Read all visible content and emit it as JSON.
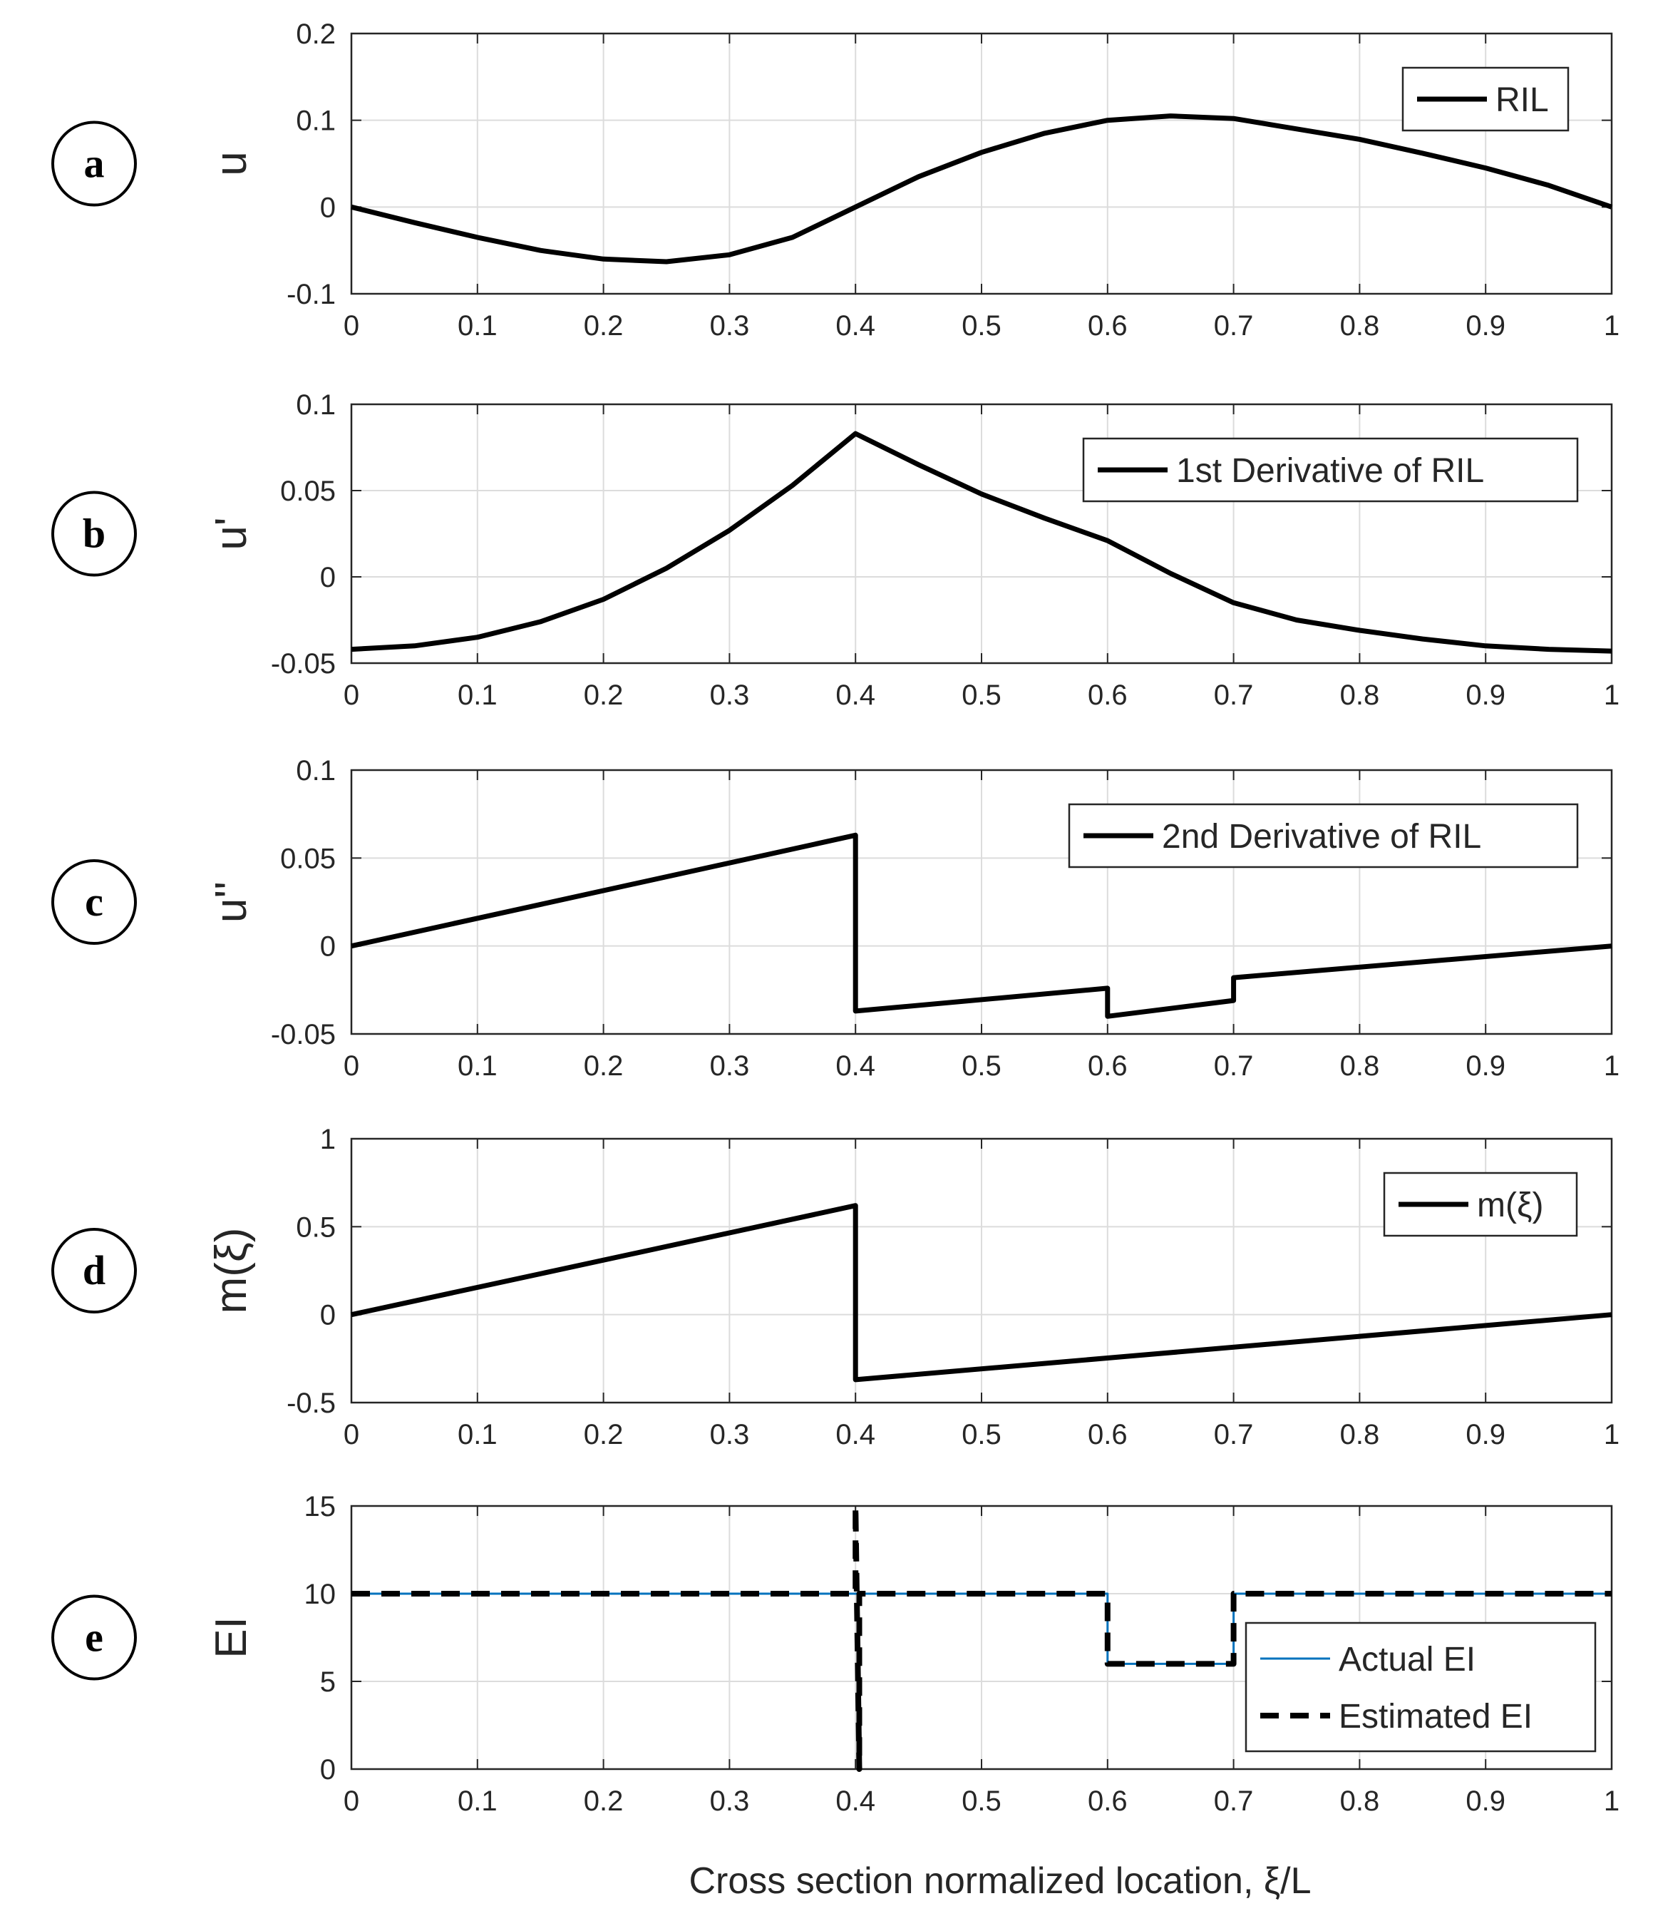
{
  "figure": {
    "xlabel": "Cross section normalized location, ξ/L",
    "colors": {
      "line": "#000000",
      "actual": "#0072BD",
      "grid": "#dcdcdc",
      "axis": "#262626"
    }
  },
  "chart_data": [
    {
      "panel": "a",
      "type": "line",
      "ylabel": "u",
      "xlim": [
        0,
        1
      ],
      "ylim": [
        -0.1,
        0.2
      ],
      "xticks": [
        "0",
        "0.1",
        "0.2",
        "0.3",
        "0.4",
        "0.5",
        "0.6",
        "0.7",
        "0.8",
        "0.9",
        "1"
      ],
      "yticks": [
        "-0.1",
        "0",
        "0.1",
        "0.2"
      ],
      "legend": "top-right",
      "series": [
        {
          "name": "RIL",
          "style": "solid-thick",
          "x": [
            0,
            0.05,
            0.1,
            0.15,
            0.2,
            0.25,
            0.3,
            0.35,
            0.4,
            0.45,
            0.5,
            0.55,
            0.6,
            0.65,
            0.7,
            0.75,
            0.8,
            0.85,
            0.9,
            0.95,
            1
          ],
          "y": [
            0,
            -0.018,
            -0.035,
            -0.05,
            -0.06,
            -0.063,
            -0.055,
            -0.035,
            0,
            0.035,
            0.063,
            0.085,
            0.1,
            0.105,
            0.102,
            0.09,
            0.078,
            0.062,
            0.045,
            0.025,
            0
          ]
        }
      ]
    },
    {
      "panel": "b",
      "type": "line",
      "ylabel": "u'",
      "xlim": [
        0,
        1
      ],
      "ylim": [
        -0.05,
        0.1
      ],
      "xticks": [
        "0",
        "0.1",
        "0.2",
        "0.3",
        "0.4",
        "0.5",
        "0.6",
        "0.7",
        "0.8",
        "0.9",
        "1"
      ],
      "yticks": [
        "-0.05",
        "0",
        "0.05",
        "0.1"
      ],
      "legend": "top-right",
      "series": [
        {
          "name": "1st Derivative of RIL",
          "style": "solid-thick",
          "x": [
            0,
            0.05,
            0.1,
            0.15,
            0.2,
            0.25,
            0.3,
            0.35,
            0.4,
            0.45,
            0.5,
            0.55,
            0.6,
            0.65,
            0.7,
            0.75,
            0.8,
            0.85,
            0.9,
            0.95,
            1
          ],
          "y": [
            -0.042,
            -0.04,
            -0.035,
            -0.026,
            -0.013,
            0.005,
            0.027,
            0.053,
            0.083,
            0.065,
            0.048,
            0.034,
            0.021,
            0.002,
            -0.015,
            -0.025,
            -0.031,
            -0.036,
            -0.04,
            -0.042,
            -0.043
          ]
        }
      ]
    },
    {
      "panel": "c",
      "type": "line",
      "ylabel": "u''",
      "xlim": [
        0,
        1
      ],
      "ylim": [
        -0.05,
        0.1
      ],
      "xticks": [
        "0",
        "0.1",
        "0.2",
        "0.3",
        "0.4",
        "0.5",
        "0.6",
        "0.7",
        "0.8",
        "0.9",
        "1"
      ],
      "yticks": [
        "-0.05",
        "0",
        "0.05",
        "0.1"
      ],
      "legend": "top-right",
      "series": [
        {
          "name": "2nd Derivative of RIL",
          "style": "solid-thick",
          "x": [
            0,
            0.4,
            0.4,
            0.6,
            0.6,
            0.7,
            0.7,
            1
          ],
          "y": [
            0,
            0.063,
            -0.037,
            -0.024,
            -0.04,
            -0.031,
            -0.018,
            0
          ]
        }
      ]
    },
    {
      "panel": "d",
      "type": "line",
      "ylabel": "m(ξ)",
      "xlim": [
        0,
        1
      ],
      "ylim": [
        -0.5,
        1
      ],
      "xticks": [
        "0",
        "0.1",
        "0.2",
        "0.3",
        "0.4",
        "0.5",
        "0.6",
        "0.7",
        "0.8",
        "0.9",
        "1"
      ],
      "yticks": [
        "-0.5",
        "0",
        "0.5",
        "1"
      ],
      "legend": "top-right",
      "series": [
        {
          "name": "m(ξ)",
          "style": "solid-thick",
          "x": [
            0,
            0.4,
            0.4,
            1
          ],
          "y": [
            0,
            0.62,
            -0.37,
            0
          ]
        }
      ]
    },
    {
      "panel": "e",
      "type": "line",
      "ylabel": "EI",
      "xlim": [
        0,
        1
      ],
      "ylim": [
        0,
        15
      ],
      "xticks": [
        "0",
        "0.1",
        "0.2",
        "0.3",
        "0.4",
        "0.5",
        "0.6",
        "0.7",
        "0.8",
        "0.9",
        "1"
      ],
      "yticks": [
        "0",
        "5",
        "10",
        "15"
      ],
      "legend": "bottom-right",
      "series": [
        {
          "name": "Actual EI",
          "style": "solid-thin-blue",
          "x": [
            0,
            0.6,
            0.6,
            0.7,
            0.7,
            1
          ],
          "y": [
            10,
            10,
            6,
            6,
            10,
            10
          ]
        },
        {
          "name": "Estimated EI",
          "style": "dashed-thick",
          "x": [
            0,
            0.4,
            0.4,
            0.403,
            0.403,
            0.6,
            0.6,
            0.7,
            0.7,
            1
          ],
          "y": [
            10,
            10,
            15,
            0,
            10,
            10,
            6,
            6,
            10,
            10
          ]
        }
      ]
    }
  ]
}
